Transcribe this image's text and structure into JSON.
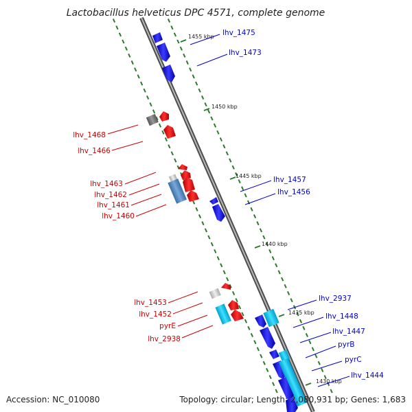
{
  "title": "Lactobacillus helveticus DPC 4571, complete genome",
  "accession": "Accession: NC_010080",
  "summary": "Topology: circular; Length: 2,080,931 bp; Genes: 1,683",
  "colors": {
    "forward_label": "#0000cc",
    "reverse_label": "#cc0000",
    "tick": "#2a7a2a",
    "backbone": "#888888"
  },
  "kbp_ticks": [
    "1455 kbp",
    "1450 kbp",
    "1445 kbp",
    "1440 kbp",
    "1435 kbp",
    "1430 kbp"
  ],
  "forward_genes": [
    "lhv_1475",
    "lhv_1473",
    "lhv_1457",
    "lhv_1456",
    "lhv_2937",
    "lhv_1448",
    "lhv_1447",
    "pyrB",
    "pyrC",
    "lhv_1444"
  ],
  "reverse_genes": [
    "lhv_1468",
    "lhv_1466",
    "lhv_1463",
    "lhv_1462",
    "lhv_1461",
    "lhv_1460",
    "lhv_1453",
    "lhv_1452",
    "pyrE",
    "lhv_2938"
  ]
}
